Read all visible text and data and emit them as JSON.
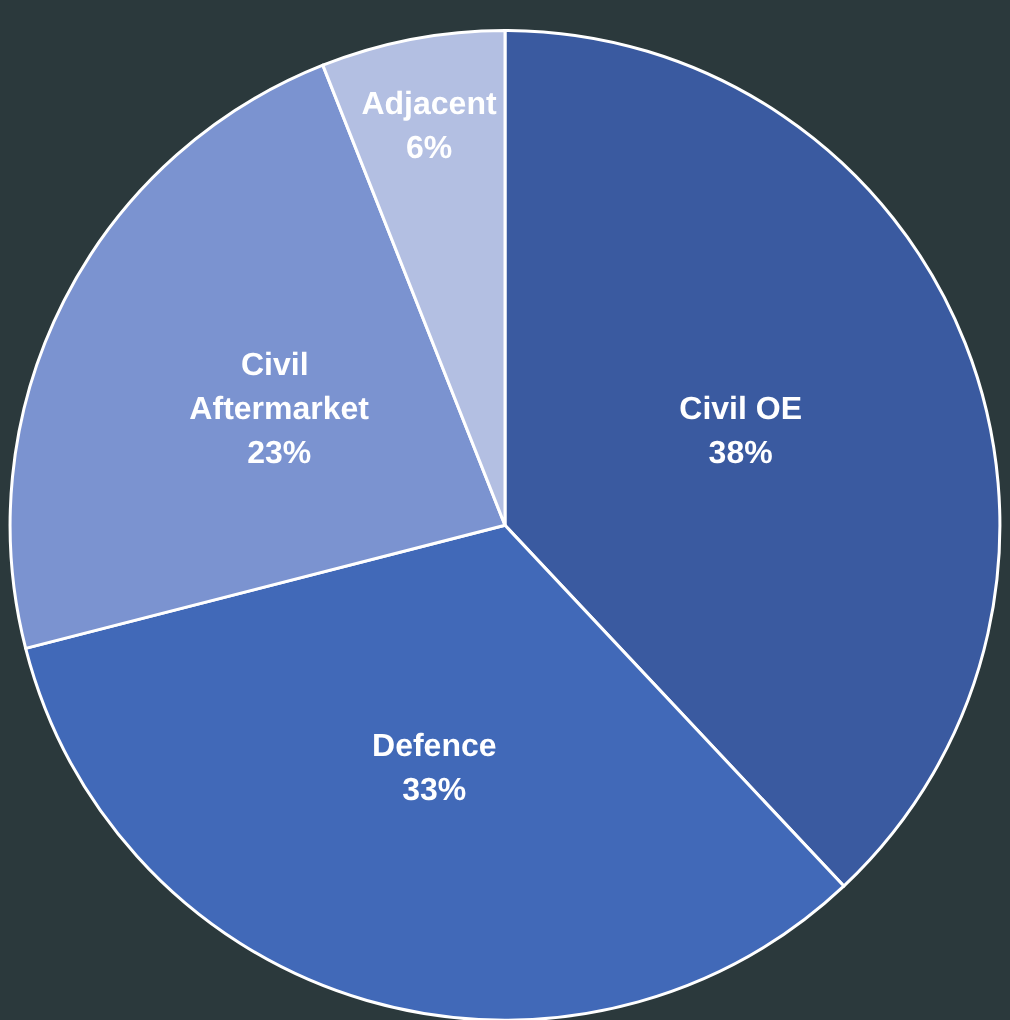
{
  "chart_data": {
    "type": "pie",
    "categories": [
      "Civil OE",
      "Defence",
      "Civil Aftermarket",
      "Adjacent"
    ],
    "values": [
      38,
      33,
      23,
      6
    ],
    "value_labels": [
      "38%",
      "33%",
      "23%",
      "6%"
    ],
    "colors": [
      "#3a5aa0",
      "#4169b8",
      "#7b93d0",
      "#b3bfe2"
    ]
  }
}
